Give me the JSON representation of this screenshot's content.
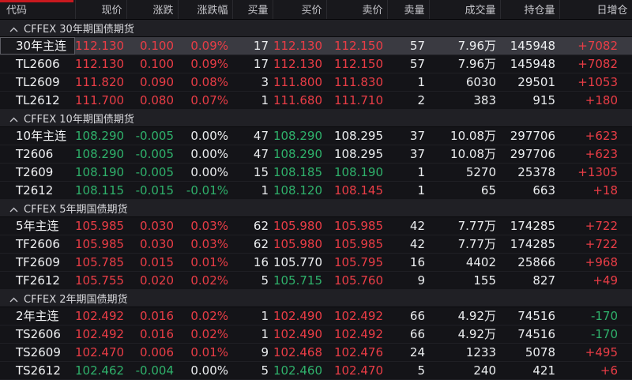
{
  "colors": {
    "up": "#ea3d46",
    "down": "#2fb16b",
    "neutral": "#eceef0",
    "code": "#f2f3f5",
    "accent_bar": "#c8191f"
  },
  "table": {
    "columns": [
      {
        "key": "code",
        "label": "代码",
        "align": "left"
      },
      {
        "key": "last",
        "label": "现价",
        "align": "right"
      },
      {
        "key": "chg",
        "label": "涨跌",
        "align": "right"
      },
      {
        "key": "chg_pct",
        "label": "涨跌幅",
        "align": "right"
      },
      {
        "key": "bid_vol",
        "label": "买量",
        "align": "right"
      },
      {
        "key": "bid",
        "label": "买价",
        "align": "right"
      },
      {
        "key": "ask",
        "label": "卖价",
        "align": "right"
      },
      {
        "key": "ask_vol",
        "label": "卖量",
        "align": "right"
      },
      {
        "key": "volume",
        "label": "成交量",
        "align": "right"
      },
      {
        "key": "open_interest",
        "label": "持仓量",
        "align": "right"
      },
      {
        "key": "oi_chg",
        "label": "日增仓",
        "align": "right"
      }
    ],
    "groups": [
      {
        "title": "CFFEX 30年期国债期货",
        "rows": [
          {
            "code": "30年主连",
            "selected": true,
            "values": {
              "last": "112.130",
              "chg": "0.100",
              "chg_pct": "0.09%",
              "bid_vol": "17",
              "bid": "112.130",
              "ask": "112.150",
              "ask_vol": "57",
              "volume": "7.96万",
              "open_interest": "145948",
              "oi_chg": "+7082"
            },
            "tones": {
              "last": "up",
              "chg": "up",
              "chg_pct": "up",
              "bid": "up",
              "ask": "up",
              "oi_chg": "up"
            }
          },
          {
            "code": "TL2606",
            "selected": false,
            "values": {
              "last": "112.130",
              "chg": "0.100",
              "chg_pct": "0.09%",
              "bid_vol": "17",
              "bid": "112.130",
              "ask": "112.150",
              "ask_vol": "57",
              "volume": "7.96万",
              "open_interest": "145948",
              "oi_chg": "+7082"
            },
            "tones": {
              "last": "up",
              "chg": "up",
              "chg_pct": "up",
              "bid": "up",
              "ask": "up",
              "oi_chg": "up"
            }
          },
          {
            "code": "TL2609",
            "selected": false,
            "values": {
              "last": "111.820",
              "chg": "0.090",
              "chg_pct": "0.08%",
              "bid_vol": "3",
              "bid": "111.800",
              "ask": "111.830",
              "ask_vol": "1",
              "volume": "6030",
              "open_interest": "29501",
              "oi_chg": "+1053"
            },
            "tones": {
              "last": "up",
              "chg": "up",
              "chg_pct": "up",
              "bid": "up",
              "ask": "up",
              "oi_chg": "up"
            }
          },
          {
            "code": "TL2612",
            "selected": false,
            "values": {
              "last": "111.700",
              "chg": "0.080",
              "chg_pct": "0.07%",
              "bid_vol": "1",
              "bid": "111.680",
              "ask": "111.710",
              "ask_vol": "2",
              "volume": "383",
              "open_interest": "915",
              "oi_chg": "+180"
            },
            "tones": {
              "last": "up",
              "chg": "up",
              "chg_pct": "up",
              "bid": "up",
              "ask": "up",
              "oi_chg": "up"
            }
          }
        ]
      },
      {
        "title": "CFFEX 10年期国债期货",
        "rows": [
          {
            "code": "10年主连",
            "selected": false,
            "values": {
              "last": "108.290",
              "chg": "-0.005",
              "chg_pct": "0.00%",
              "bid_vol": "47",
              "bid": "108.290",
              "ask": "108.295",
              "ask_vol": "37",
              "volume": "10.08万",
              "open_interest": "297706",
              "oi_chg": "+623"
            },
            "tones": {
              "last": "down",
              "chg": "down",
              "chg_pct": "neutral",
              "bid": "down",
              "ask": "neutral",
              "oi_chg": "up"
            }
          },
          {
            "code": "T2606",
            "selected": false,
            "values": {
              "last": "108.290",
              "chg": "-0.005",
              "chg_pct": "0.00%",
              "bid_vol": "47",
              "bid": "108.290",
              "ask": "108.295",
              "ask_vol": "37",
              "volume": "10.08万",
              "open_interest": "297706",
              "oi_chg": "+623"
            },
            "tones": {
              "last": "down",
              "chg": "down",
              "chg_pct": "neutral",
              "bid": "down",
              "ask": "neutral",
              "oi_chg": "up"
            }
          },
          {
            "code": "T2609",
            "selected": false,
            "values": {
              "last": "108.190",
              "chg": "-0.005",
              "chg_pct": "0.00%",
              "bid_vol": "15",
              "bid": "108.185",
              "ask": "108.190",
              "ask_vol": "1",
              "volume": "5270",
              "open_interest": "25378",
              "oi_chg": "+1305"
            },
            "tones": {
              "last": "down",
              "chg": "down",
              "chg_pct": "neutral",
              "bid": "down",
              "ask": "down",
              "oi_chg": "up"
            }
          },
          {
            "code": "T2612",
            "selected": false,
            "values": {
              "last": "108.115",
              "chg": "-0.015",
              "chg_pct": "-0.01%",
              "bid_vol": "1",
              "bid": "108.120",
              "ask": "108.145",
              "ask_vol": "1",
              "volume": "65",
              "open_interest": "663",
              "oi_chg": "+18"
            },
            "tones": {
              "last": "down",
              "chg": "down",
              "chg_pct": "down",
              "bid": "down",
              "ask": "up",
              "oi_chg": "up"
            }
          }
        ]
      },
      {
        "title": "CFFEX 5年期国债期货",
        "rows": [
          {
            "code": "5年主连",
            "selected": false,
            "values": {
              "last": "105.985",
              "chg": "0.030",
              "chg_pct": "0.03%",
              "bid_vol": "62",
              "bid": "105.980",
              "ask": "105.985",
              "ask_vol": "42",
              "volume": "7.77万",
              "open_interest": "174285",
              "oi_chg": "+722"
            },
            "tones": {
              "last": "up",
              "chg": "up",
              "chg_pct": "up",
              "bid": "up",
              "ask": "up",
              "oi_chg": "up"
            }
          },
          {
            "code": "TF2606",
            "selected": false,
            "values": {
              "last": "105.985",
              "chg": "0.030",
              "chg_pct": "0.03%",
              "bid_vol": "62",
              "bid": "105.980",
              "ask": "105.985",
              "ask_vol": "42",
              "volume": "7.77万",
              "open_interest": "174285",
              "oi_chg": "+722"
            },
            "tones": {
              "last": "up",
              "chg": "up",
              "chg_pct": "up",
              "bid": "up",
              "ask": "up",
              "oi_chg": "up"
            }
          },
          {
            "code": "TF2609",
            "selected": false,
            "values": {
              "last": "105.785",
              "chg": "0.015",
              "chg_pct": "0.01%",
              "bid_vol": "16",
              "bid": "105.770",
              "ask": "105.795",
              "ask_vol": "16",
              "volume": "4402",
              "open_interest": "25866",
              "oi_chg": "+968"
            },
            "tones": {
              "last": "up",
              "chg": "up",
              "chg_pct": "up",
              "bid": "neutral",
              "ask": "up",
              "oi_chg": "up"
            }
          },
          {
            "code": "TF2612",
            "selected": false,
            "values": {
              "last": "105.755",
              "chg": "0.020",
              "chg_pct": "0.02%",
              "bid_vol": "5",
              "bid": "105.715",
              "ask": "105.760",
              "ask_vol": "9",
              "volume": "155",
              "open_interest": "827",
              "oi_chg": "+49"
            },
            "tones": {
              "last": "up",
              "chg": "up",
              "chg_pct": "up",
              "bid": "down",
              "ask": "up",
              "oi_chg": "up"
            }
          }
        ]
      },
      {
        "title": "CFFEX 2年期国债期货",
        "rows": [
          {
            "code": "2年主连",
            "selected": false,
            "values": {
              "last": "102.492",
              "chg": "0.016",
              "chg_pct": "0.02%",
              "bid_vol": "1",
              "bid": "102.490",
              "ask": "102.492",
              "ask_vol": "66",
              "volume": "4.92万",
              "open_interest": "74516",
              "oi_chg": "-170"
            },
            "tones": {
              "last": "up",
              "chg": "up",
              "chg_pct": "up",
              "bid": "up",
              "ask": "up",
              "oi_chg": "down"
            }
          },
          {
            "code": "TS2606",
            "selected": false,
            "values": {
              "last": "102.492",
              "chg": "0.016",
              "chg_pct": "0.02%",
              "bid_vol": "1",
              "bid": "102.490",
              "ask": "102.492",
              "ask_vol": "66",
              "volume": "4.92万",
              "open_interest": "74516",
              "oi_chg": "-170"
            },
            "tones": {
              "last": "up",
              "chg": "up",
              "chg_pct": "up",
              "bid": "up",
              "ask": "up",
              "oi_chg": "down"
            }
          },
          {
            "code": "TS2609",
            "selected": false,
            "values": {
              "last": "102.470",
              "chg": "0.006",
              "chg_pct": "0.01%",
              "bid_vol": "9",
              "bid": "102.468",
              "ask": "102.476",
              "ask_vol": "24",
              "volume": "1233",
              "open_interest": "5078",
              "oi_chg": "+495"
            },
            "tones": {
              "last": "up",
              "chg": "up",
              "chg_pct": "up",
              "bid": "up",
              "ask": "up",
              "oi_chg": "up"
            }
          },
          {
            "code": "TS2612",
            "selected": false,
            "values": {
              "last": "102.462",
              "chg": "-0.004",
              "chg_pct": "0.00%",
              "bid_vol": "5",
              "bid": "102.460",
              "ask": "102.470",
              "ask_vol": "5",
              "volume": "240",
              "open_interest": "421",
              "oi_chg": "+6"
            },
            "tones": {
              "last": "down",
              "chg": "down",
              "chg_pct": "neutral",
              "bid": "down",
              "ask": "up",
              "oi_chg": "up"
            }
          }
        ]
      }
    ]
  }
}
